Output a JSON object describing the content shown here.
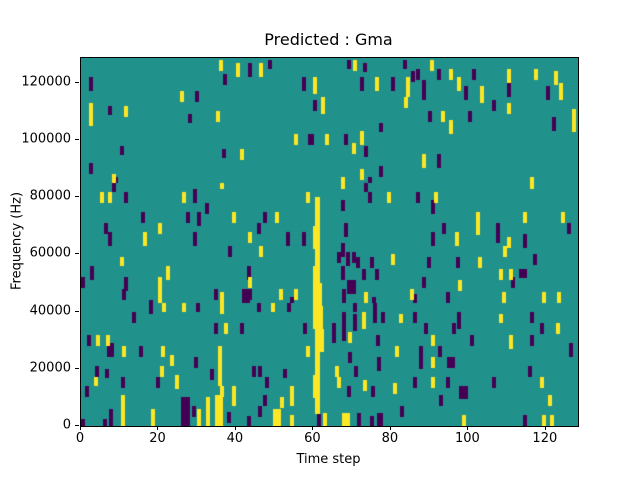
{
  "chart_data": {
    "type": "heatmap",
    "title": "Predicted : Gma",
    "xlabel": "Time step",
    "ylabel": "Frequency (Hz)",
    "xlim": [
      0,
      128.3
    ],
    "ylim_khz": [
      0,
      128.7
    ],
    "xticks": [
      0,
      20,
      40,
      60,
      80,
      100,
      120
    ],
    "yticks_hz": [
      0,
      20000,
      40000,
      60000,
      80000,
      100000,
      120000
    ],
    "grid": false,
    "legend": "none",
    "colors": {
      "background_mid": "#21918c",
      "high_yellow": "#fde725",
      "low_purple": "#440154",
      "text": "#000000"
    },
    "cell_units": {
      "dt_timesteps": 1,
      "df_khz": 1
    },
    "note_units": "marks are [t, f_lo_kHz, f_hi_kHz, optional_width_t]",
    "streak_high": [
      [
        60.3,
        1.2,
        70,
        80
      ],
      [
        59.8,
        1.7,
        62,
        70
      ],
      [
        60.3,
        1.2,
        56,
        62
      ],
      [
        59.8,
        1.7,
        50,
        56
      ],
      [
        59.8,
        2.2,
        42,
        50
      ],
      [
        59.8,
        2.6,
        34,
        42
      ],
      [
        60.3,
        2.2,
        26,
        34
      ],
      [
        60.3,
        1.4,
        18,
        26
      ],
      [
        59.8,
        1.7,
        10,
        18
      ],
      [
        60.3,
        1.2,
        4,
        10
      ]
    ],
    "marks_high": [
      [
        2,
        105,
        113
      ],
      [
        11,
        108,
        112
      ],
      [
        25.5,
        113,
        117
      ],
      [
        34.8,
        106,
        110
      ],
      [
        40,
        122,
        127
      ],
      [
        41,
        93,
        97
      ],
      [
        8,
        85,
        88
      ],
      [
        35.5,
        124,
        128
      ],
      [
        46,
        122,
        127
      ],
      [
        60,
        116,
        122
      ],
      [
        62,
        109,
        115
      ],
      [
        76,
        117,
        122
      ],
      [
        84,
        115,
        122
      ],
      [
        83.5,
        111,
        115
      ],
      [
        55,
        98,
        102
      ],
      [
        63,
        98,
        102
      ],
      [
        72,
        98,
        103
      ],
      [
        70,
        95,
        99
      ],
      [
        72,
        86,
        90
      ],
      [
        67,
        85,
        87
      ],
      [
        70.2,
        124,
        128
      ],
      [
        90,
        124,
        128
      ],
      [
        95,
        121,
        125
      ],
      [
        97,
        117,
        122
      ],
      [
        110,
        120,
        125
      ],
      [
        117,
        121,
        125
      ],
      [
        122,
        119,
        124
      ],
      [
        123.5,
        114,
        120
      ],
      [
        103,
        113,
        119
      ],
      [
        110,
        109,
        113
      ],
      [
        93,
        106,
        110
      ],
      [
        95,
        102,
        107
      ],
      [
        126.8,
        103,
        111
      ],
      [
        88,
        90,
        95
      ],
      [
        115.8,
        85,
        87
      ],
      [
        5,
        78,
        82
      ],
      [
        7,
        78,
        82
      ],
      [
        26,
        78,
        82
      ],
      [
        36,
        83,
        85
      ],
      [
        39,
        71,
        75
      ],
      [
        20,
        67,
        71
      ],
      [
        16,
        63,
        68
      ],
      [
        10,
        56,
        59
      ],
      [
        22,
        51,
        56
      ],
      [
        20,
        43,
        52
      ],
      [
        36,
        43,
        47
      ],
      [
        58,
        78,
        82
      ],
      [
        67,
        83,
        85
      ],
      [
        79,
        78,
        82
      ],
      [
        50,
        71,
        75
      ],
      [
        43,
        64,
        68
      ],
      [
        46,
        59,
        63
      ],
      [
        80,
        56,
        60
      ],
      [
        43,
        48,
        52
      ],
      [
        51,
        44,
        48
      ],
      [
        55,
        44,
        48
      ],
      [
        73,
        43,
        47
      ],
      [
        85,
        44,
        48
      ],
      [
        116,
        83,
        85
      ],
      [
        91,
        78,
        82
      ],
      [
        102,
        67,
        75
      ],
      [
        114,
        71,
        75
      ],
      [
        124,
        71,
        75
      ],
      [
        96.5,
        63,
        68
      ],
      [
        110,
        62,
        66
      ],
      [
        109,
        59,
        63
      ],
      [
        102.5,
        55,
        59
      ],
      [
        108,
        51,
        55
      ],
      [
        110.5,
        51,
        55
      ],
      [
        97.3,
        47,
        51
      ],
      [
        108.7,
        43,
        47
      ],
      [
        119,
        43,
        47
      ],
      [
        123,
        43,
        47
      ],
      [
        21,
        40,
        43
      ],
      [
        26,
        40,
        43
      ],
      [
        36,
        39,
        43
      ],
      [
        37,
        32,
        36
      ],
      [
        4,
        28,
        32
      ],
      [
        6.5,
        28,
        32
      ],
      [
        10.5,
        24,
        28
      ],
      [
        20.6,
        24,
        28
      ],
      [
        23,
        21,
        25
      ],
      [
        20.5,
        17,
        21
      ],
      [
        35.3,
        14,
        28
      ],
      [
        3.3,
        14,
        17
      ],
      [
        24.3,
        13,
        18
      ],
      [
        39,
        11,
        14
      ],
      [
        36,
        10,
        14
      ],
      [
        10.2,
        0,
        11
      ],
      [
        18,
        0,
        6
      ],
      [
        30,
        0,
        6
      ],
      [
        32.3,
        0,
        10
      ],
      [
        34.5,
        0,
        11,
        2
      ],
      [
        39,
        7,
        11
      ],
      [
        49,
        40,
        43
      ],
      [
        82,
        36,
        39
      ],
      [
        72.5,
        34,
        40
      ],
      [
        58,
        24,
        28
      ],
      [
        81,
        24,
        28
      ],
      [
        65.6,
        17,
        21
      ],
      [
        66,
        13,
        17
      ],
      [
        72.8,
        12,
        16
      ],
      [
        80.5,
        11,
        15
      ],
      [
        54,
        7,
        14
      ],
      [
        51.4,
        6,
        10
      ],
      [
        49.5,
        0,
        6,
        2
      ],
      [
        54,
        0,
        4
      ],
      [
        62.6,
        0,
        4.5
      ],
      [
        67.5,
        0,
        4.5,
        2
      ],
      [
        68.8,
        29,
        33
      ],
      [
        108,
        36,
        39
      ],
      [
        122.5,
        32,
        36
      ],
      [
        90.4,
        28,
        32
      ],
      [
        110.5,
        27,
        32
      ],
      [
        90.4,
        20,
        24
      ],
      [
        90.4,
        13,
        17
      ],
      [
        118.4,
        13,
        17
      ],
      [
        120.5,
        7,
        11
      ],
      [
        98.4,
        0,
        4
      ],
      [
        119,
        0,
        4
      ],
      [
        121,
        0,
        4
      ]
    ],
    "marks_low": [
      [
        2,
        117,
        122
      ],
      [
        7,
        109,
        112
      ],
      [
        29.4,
        113,
        117
      ],
      [
        27.5,
        106,
        109
      ],
      [
        36.7,
        119,
        123
      ],
      [
        43,
        122,
        127
      ],
      [
        36.5,
        94,
        97
      ],
      [
        10,
        95,
        98
      ],
      [
        2,
        88,
        92
      ],
      [
        8.5,
        85,
        87
      ],
      [
        57,
        117,
        122
      ],
      [
        60,
        110,
        114
      ],
      [
        72,
        117,
        122
      ],
      [
        80,
        117,
        122
      ],
      [
        83,
        125,
        128
      ],
      [
        77,
        103,
        106
      ],
      [
        58.5,
        98,
        102,
        1.5
      ],
      [
        68,
        98,
        102
      ],
      [
        73,
        94,
        98
      ],
      [
        77,
        87,
        91
      ],
      [
        74,
        85,
        87
      ],
      [
        68.6,
        125,
        128
      ],
      [
        72.7,
        124,
        127
      ],
      [
        48.3,
        125,
        128
      ],
      [
        85.2,
        120,
        124
      ],
      [
        86.4,
        121,
        125
      ],
      [
        92,
        121,
        125
      ],
      [
        88,
        114,
        121
      ],
      [
        101,
        121,
        125
      ],
      [
        110,
        115,
        121
      ],
      [
        120,
        114,
        119
      ],
      [
        99,
        114,
        119
      ],
      [
        106,
        110,
        114
      ],
      [
        89.5,
        106,
        110
      ],
      [
        100,
        106,
        110
      ],
      [
        121.5,
        103,
        108
      ],
      [
        92,
        90,
        95
      ],
      [
        8,
        82,
        85
      ],
      [
        11,
        78,
        82
      ],
      [
        29,
        78,
        83
      ],
      [
        32,
        74,
        78
      ],
      [
        27,
        71,
        75
      ],
      [
        30,
        70,
        75
      ],
      [
        15.5,
        71,
        75
      ],
      [
        6,
        67,
        71
      ],
      [
        7,
        63,
        68
      ],
      [
        29,
        63,
        68
      ],
      [
        38,
        59,
        63
      ],
      [
        2.4,
        51,
        56
      ],
      [
        0,
        48,
        52
      ],
      [
        11,
        47,
        52
      ],
      [
        10.5,
        44,
        48
      ],
      [
        34.4,
        44,
        48
      ],
      [
        41.5,
        43,
        48,
        2
      ],
      [
        17.6,
        43,
        44
      ],
      [
        73,
        82,
        85
      ],
      [
        74,
        78,
        82
      ],
      [
        67,
        75,
        79
      ],
      [
        47,
        71,
        75
      ],
      [
        45.4,
        67,
        71
      ],
      [
        68,
        66,
        71
      ],
      [
        53,
        63,
        68
      ],
      [
        57,
        63,
        68
      ],
      [
        66,
        57,
        61
      ],
      [
        67,
        59,
        64
      ],
      [
        68.5,
        56,
        61
      ],
      [
        70,
        57,
        61
      ],
      [
        71,
        55,
        59
      ],
      [
        74.5,
        55,
        59
      ],
      [
        67,
        51,
        56
      ],
      [
        72.5,
        51,
        55
      ],
      [
        76,
        51,
        55
      ],
      [
        68.6,
        46,
        51,
        2.2
      ],
      [
        42.8,
        51,
        56
      ],
      [
        43,
        44,
        48
      ],
      [
        54,
        43,
        45
      ],
      [
        67.3,
        43,
        48
      ],
      [
        75,
        43,
        45
      ],
      [
        86.6,
        78,
        82
      ],
      [
        90.4,
        74,
        79
      ],
      [
        93.3,
        67,
        71
      ],
      [
        107.2,
        64,
        71
      ],
      [
        125.4,
        67,
        71
      ],
      [
        90.4,
        63,
        68
      ],
      [
        114.1,
        62,
        67
      ],
      [
        116.7,
        56,
        60
      ],
      [
        89.3,
        55,
        59
      ],
      [
        96.9,
        55,
        59
      ],
      [
        113,
        52,
        55,
        2
      ],
      [
        88.1,
        48,
        52
      ],
      [
        111.1,
        48,
        52
      ],
      [
        94.3,
        43,
        47
      ],
      [
        17.6,
        39,
        43
      ],
      [
        29.7,
        40,
        43
      ],
      [
        13.1,
        36,
        40
      ],
      [
        34.4,
        32,
        36
      ],
      [
        41,
        32,
        36
      ],
      [
        1.5,
        28,
        32
      ],
      [
        6.8,
        24,
        29,
        1.7
      ],
      [
        15.1,
        24,
        28
      ],
      [
        29.2,
        20,
        24
      ],
      [
        3.6,
        17,
        21
      ],
      [
        6.2,
        17,
        20
      ],
      [
        33.4,
        16,
        20
      ],
      [
        10.3,
        13,
        17
      ],
      [
        19.4,
        13,
        17
      ],
      [
        1,
        10,
        14
      ],
      [
        7.3,
        0,
        6
      ],
      [
        25.8,
        0,
        10,
        2.2
      ],
      [
        28.6,
        3,
        7
      ],
      [
        37.7,
        1,
        5
      ],
      [
        0,
        0,
        2.4
      ],
      [
        5.8,
        0,
        2.4
      ],
      [
        45.4,
        40,
        43
      ],
      [
        53.3,
        40,
        43
      ],
      [
        70.2,
        40,
        43
      ],
      [
        75.5,
        36,
        43
      ],
      [
        77.4,
        36,
        40
      ],
      [
        67.3,
        30,
        40
      ],
      [
        70.2,
        33,
        39
      ],
      [
        57.4,
        32,
        36
      ],
      [
        64.7,
        29,
        36
      ],
      [
        76.2,
        28,
        32
      ],
      [
        68.8,
        22,
        26
      ],
      [
        76.4,
        19,
        24
      ],
      [
        44.1,
        17,
        21
      ],
      [
        45.8,
        17,
        21
      ],
      [
        47.5,
        13,
        17
      ],
      [
        52.1,
        17,
        20
      ],
      [
        70.5,
        17,
        21
      ],
      [
        74.8,
        10,
        14
      ],
      [
        68.6,
        10,
        14
      ],
      [
        46.9,
        7,
        11
      ],
      [
        45.8,
        3,
        7
      ],
      [
        60.8,
        0,
        4.2
      ],
      [
        71.2,
        0,
        4.5
      ],
      [
        74.5,
        0,
        3.6
      ],
      [
        76.3,
        0,
        4.5,
        1.5
      ],
      [
        82.4,
        3,
        7
      ],
      [
        42.8,
        0,
        3.6
      ],
      [
        85.7,
        36,
        40
      ],
      [
        97,
        34,
        40
      ],
      [
        116,
        36,
        40
      ],
      [
        88.5,
        32,
        36
      ],
      [
        95.9,
        32,
        36
      ],
      [
        118.4,
        32,
        36
      ],
      [
        100.3,
        28,
        32
      ],
      [
        116,
        28,
        32
      ],
      [
        87.2,
        20,
        28
      ],
      [
        92.2,
        24,
        28
      ],
      [
        126.1,
        24,
        29
      ],
      [
        94.5,
        20,
        24,
        2
      ],
      [
        115.4,
        17,
        21
      ],
      [
        85.7,
        13,
        17
      ],
      [
        94.3,
        13,
        17
      ],
      [
        106.2,
        13,
        17
      ],
      [
        97.5,
        9.5,
        14,
        2.3
      ],
      [
        92.4,
        7,
        11
      ],
      [
        114.1,
        0,
        4
      ],
      [
        85.7,
        43,
        46
      ]
    ]
  }
}
